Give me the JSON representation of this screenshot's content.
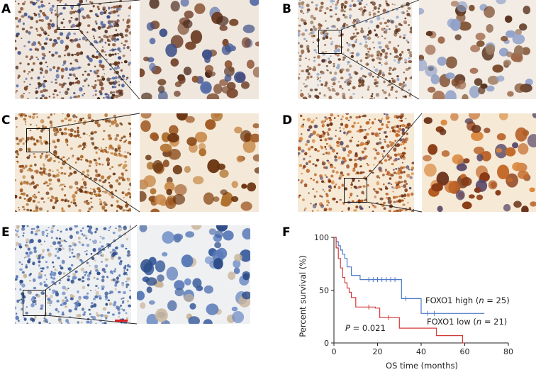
{
  "panels": [
    {
      "label": "A",
      "stain": "mixed"
    },
    {
      "label": "B",
      "stain": "light-nuclear"
    },
    {
      "label": "C",
      "stain": "strong-brown"
    },
    {
      "label": "D",
      "stain": "brown-orange"
    },
    {
      "label": "E",
      "stain": "negative-blue"
    },
    {
      "label": "F"
    }
  ],
  "colors": {
    "high_series": "#4f79c7",
    "low_series": "#d43a3a",
    "brown_stain": "#7a3e1c",
    "blue_stain": "#3d5f9e"
  },
  "chart_data": {
    "type": "line",
    "step": true,
    "xlabel": "OS time (months)",
    "ylabel": "Percent survival (%)",
    "xlim": [
      0,
      80
    ],
    "ylim": [
      0,
      100
    ],
    "xticks": [
      0,
      20,
      40,
      60,
      80
    ],
    "yticks": [
      0,
      50,
      100
    ],
    "grid": false,
    "annotation_p_italic": "P",
    "annotation_p_rest": " = 0.021",
    "series": [
      {
        "name": "FOXO1 high",
        "legend_prefix": "FOXO1 high (",
        "legend_n_italic": "n",
        "legend_suffix": " = 25)",
        "color": "#4f79c7",
        "x": [
          0,
          1,
          2,
          3,
          4,
          5,
          6,
          8,
          12,
          30,
          31,
          40,
          69
        ],
        "y": [
          100,
          96,
          92,
          88,
          84,
          80,
          72,
          64,
          60,
          60,
          42,
          28,
          28
        ],
        "censor_x": [
          16,
          18,
          20,
          22,
          24,
          26,
          28,
          33,
          43,
          46
        ],
        "censor_y": [
          60,
          60,
          60,
          60,
          60,
          60,
          60,
          42,
          28,
          28
        ]
      },
      {
        "name": "FOXO1 low",
        "legend_prefix": "FOXO1 low (",
        "legend_n_italic": "n",
        "legend_suffix": " = 21)",
        "color": "#d43a3a",
        "x": [
          0,
          1,
          2,
          3,
          4,
          5,
          6,
          7,
          8,
          10,
          19,
          21,
          30,
          47,
          59,
          60
        ],
        "y": [
          100,
          90,
          80,
          71,
          62,
          57,
          52,
          48,
          43,
          34,
          33,
          24,
          14,
          7,
          0,
          0
        ],
        "censor_x": [
          16,
          25
        ],
        "censor_y": [
          34,
          24
        ]
      }
    ]
  }
}
